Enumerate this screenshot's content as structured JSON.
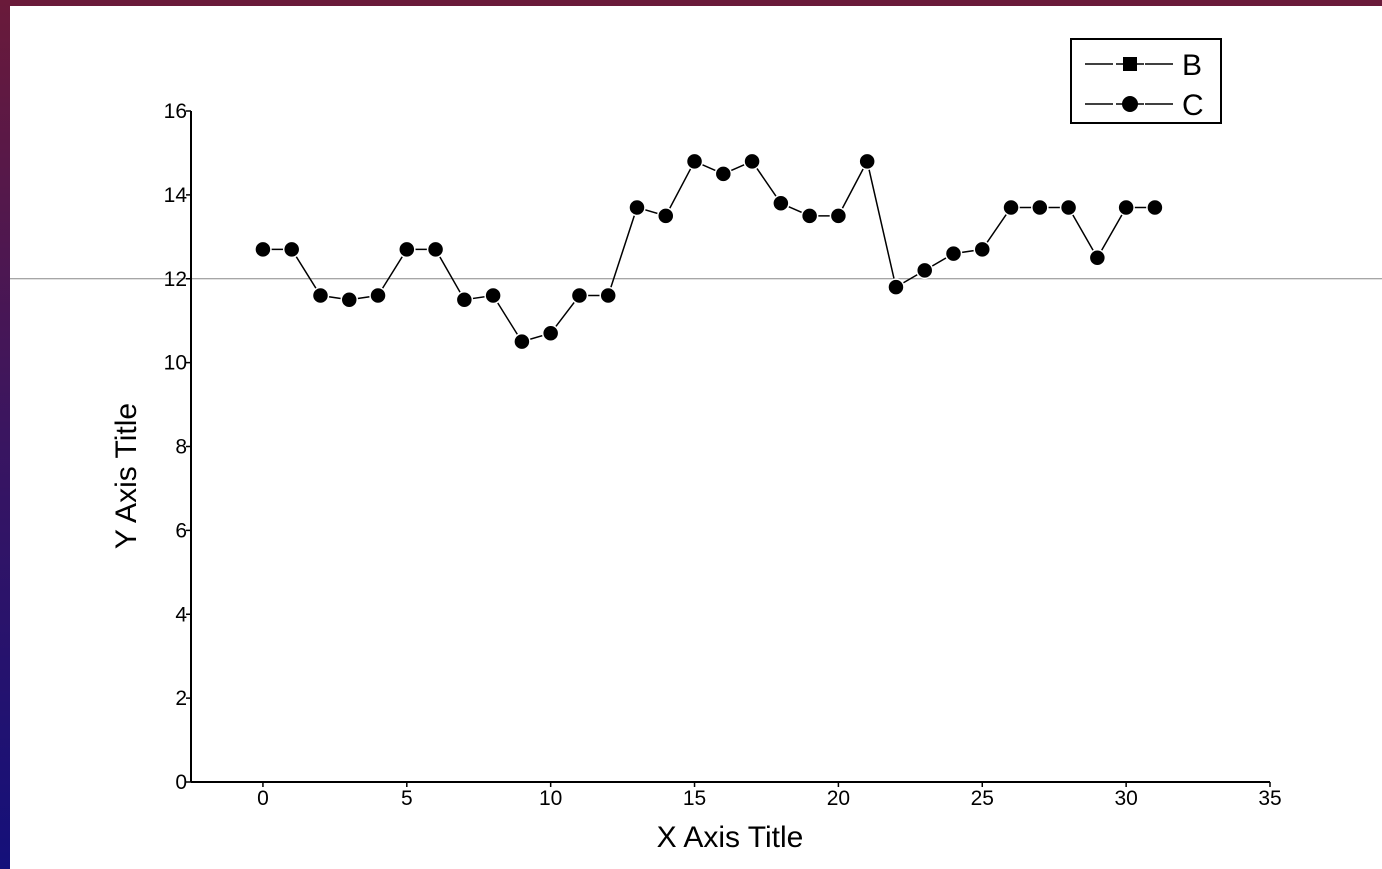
{
  "chart_data": {
    "type": "line",
    "title": "",
    "xlabel": "X Axis Title",
    "ylabel": "Y Axis Title",
    "xlim": [
      -2.5,
      35
    ],
    "ylim": [
      0,
      16
    ],
    "xticks": [
      0,
      5,
      10,
      15,
      20,
      25,
      30,
      35
    ],
    "yticks": [
      0,
      2,
      4,
      6,
      8,
      10,
      12,
      14,
      16
    ],
    "reference_line_y": 12,
    "grid": false,
    "legend_position": "top-right",
    "series": [
      {
        "name": "B",
        "marker": "square",
        "x": [],
        "y": []
      },
      {
        "name": "C",
        "marker": "circle",
        "x": [
          0,
          1,
          2,
          3,
          4,
          5,
          6,
          7,
          8,
          9,
          10,
          11,
          12,
          13,
          14,
          15,
          16,
          17,
          18,
          19,
          20,
          21,
          22,
          23,
          24,
          25,
          26,
          27,
          28,
          29,
          30,
          31
        ],
        "y": [
          12.7,
          12.7,
          11.6,
          11.5,
          11.6,
          12.7,
          12.7,
          11.5,
          11.6,
          10.5,
          10.7,
          11.6,
          11.6,
          13.7,
          13.5,
          14.8,
          14.5,
          14.8,
          13.8,
          13.5,
          13.5,
          14.8,
          11.8,
          12.2,
          12.6,
          12.7,
          13.7,
          13.7,
          13.7,
          12.5,
          13.7,
          13.7
        ]
      }
    ]
  }
}
